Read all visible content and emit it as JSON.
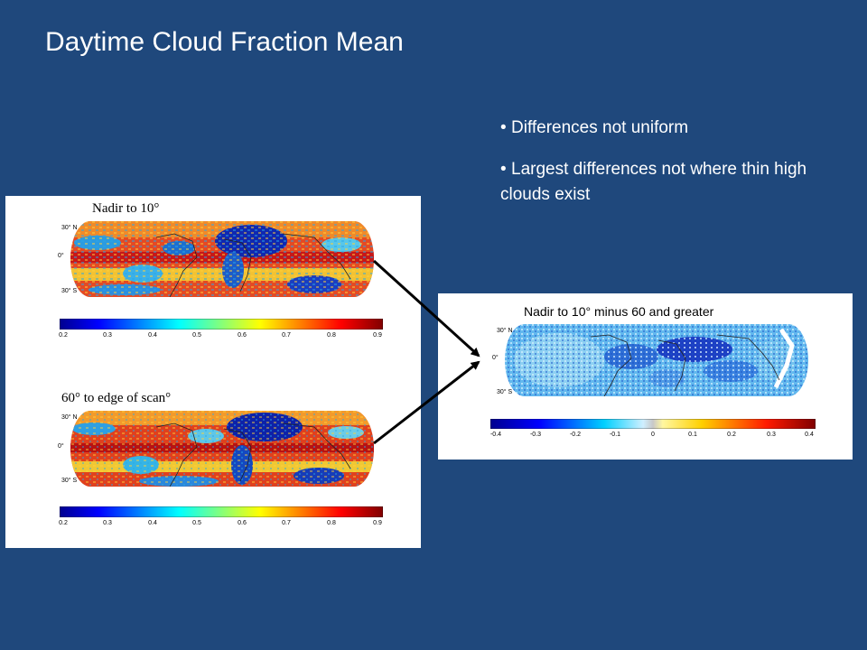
{
  "title": "Daytime Cloud Fraction Mean",
  "bullets": [
    "Differences not uniform",
    "Largest differences not where thin high clouds exist"
  ],
  "maps": {
    "top": {
      "label": "Nadir to 10°",
      "lat_labels": [
        "30° N",
        "0°",
        "30° S"
      ],
      "colorbar_ticks": [
        "0.2",
        "0.3",
        "0.4",
        "0.5",
        "0.6",
        "0.7",
        "0.8",
        "0.9"
      ]
    },
    "bottom": {
      "label": "60° to edge of scan°",
      "lat_labels": [
        "30° N",
        "0°",
        "30° S"
      ],
      "colorbar_ticks": [
        "0.2",
        "0.3",
        "0.4",
        "0.5",
        "0.6",
        "0.7",
        "0.8",
        "0.9"
      ]
    },
    "difference": {
      "label": "Nadir to 10° minus 60 and greater",
      "lat_labels": [
        "30° N",
        "0°",
        "30° S"
      ],
      "colorbar_ticks": [
        "-0.4",
        "-0.3",
        "-0.2",
        "-0.1",
        "0",
        "0.1",
        "0.2",
        "0.3",
        "0.4"
      ]
    }
  },
  "colors": {
    "background": "#1f487c",
    "arrow": "#000000"
  }
}
